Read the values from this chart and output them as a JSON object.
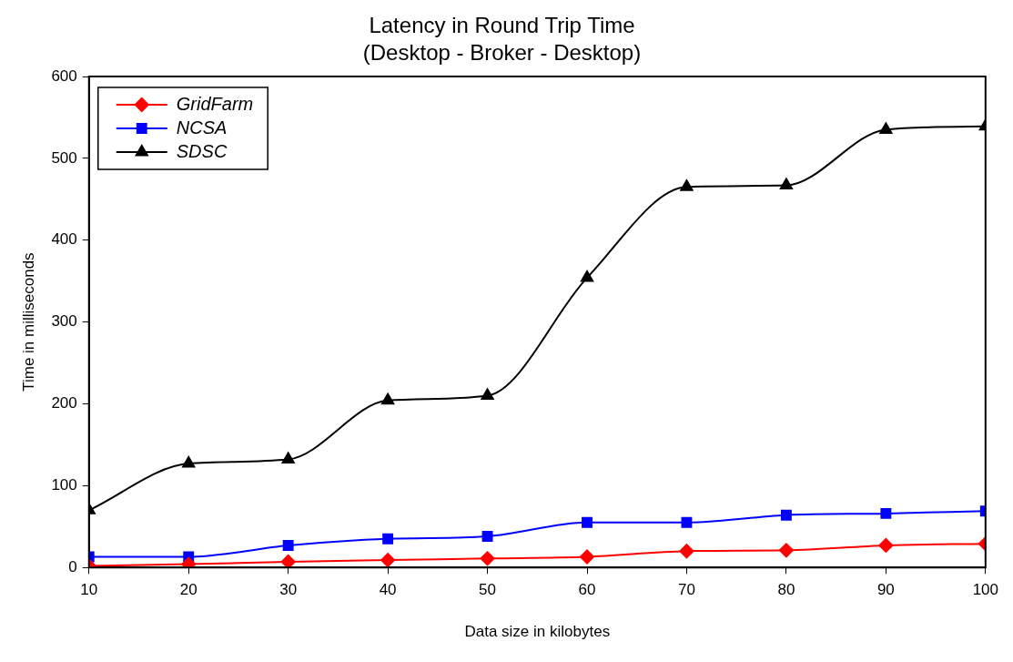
{
  "chart_data": {
    "type": "line",
    "title": "Latency in Round Trip Time\n(Desktop - Broker - Desktop)",
    "xlabel": "Data size in kilobytes",
    "ylabel": "Time in milliseconds",
    "x": [
      10,
      20,
      30,
      40,
      50,
      60,
      70,
      80,
      90,
      100
    ],
    "series": [
      {
        "name": "GridFarm",
        "color": "#ff0000",
        "marker": "diamond",
        "values": [
          2,
          4,
          7,
          9,
          11,
          13,
          20,
          21,
          27,
          29
        ]
      },
      {
        "name": "NCSA",
        "color": "#0000ff",
        "marker": "square",
        "values": [
          13,
          13,
          27,
          35,
          38,
          55,
          55,
          64,
          66,
          69
        ]
      },
      {
        "name": "SDSC",
        "color": "#000000",
        "marker": "triangle",
        "values": [
          70,
          127,
          132,
          204,
          210,
          354,
          465,
          467,
          535,
          539
        ]
      }
    ],
    "xlim": [
      10,
      100
    ],
    "xticks": [
      10,
      20,
      30,
      40,
      50,
      60,
      70,
      80,
      90,
      100
    ],
    "ylim": [
      0,
      600
    ],
    "yticks": [
      0,
      100,
      200,
      300,
      400,
      500,
      600
    ],
    "grid": false,
    "legend": "top left"
  }
}
